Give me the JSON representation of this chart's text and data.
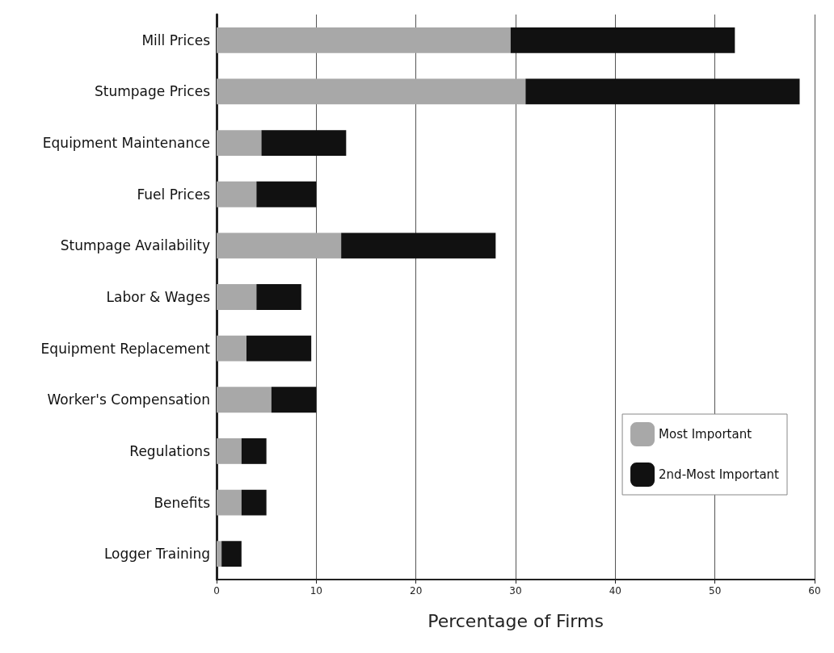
{
  "chart_data": {
    "type": "bar",
    "orientation": "horizontal",
    "stacked": true,
    "xlabel": "Percentage of Firms",
    "categories": [
      "Mill Prices",
      "Stumpage Prices",
      "Equipment Maintenance",
      "Fuel Prices",
      "Stumpage Availability",
      "Labor & Wages",
      "Equipment Replacement",
      "Worker's Compensation",
      "Regulations",
      "Benefits",
      "Logger Training"
    ],
    "series": [
      {
        "name": "Most Important",
        "color": "#a8a8a8",
        "values": [
          29.5,
          31,
          4.5,
          4,
          12.5,
          4,
          3,
          5.5,
          2.5,
          2.5,
          0.5
        ]
      },
      {
        "name": "2nd-Most Important",
        "color": "#111111",
        "values": [
          22.5,
          27.5,
          8.5,
          6,
          15.5,
          4.5,
          6.5,
          4.5,
          2.5,
          2.5,
          2
        ]
      }
    ],
    "xlim": [
      0,
      60
    ],
    "xticks": [
      0,
      10,
      20,
      30,
      40,
      50,
      60
    ],
    "grid": "x",
    "legend": "bottom right"
  }
}
